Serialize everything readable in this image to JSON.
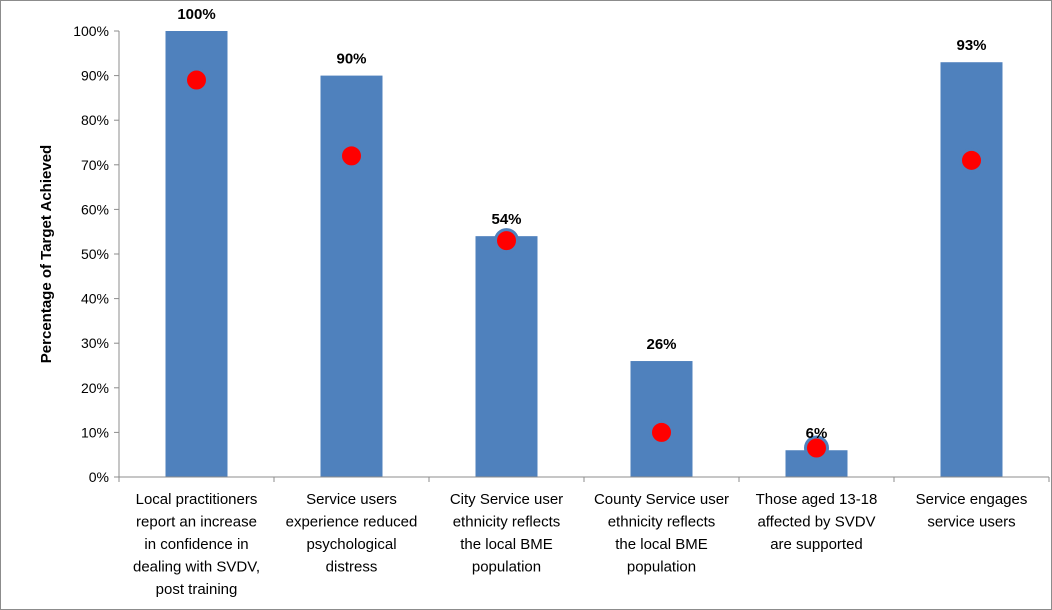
{
  "chart_data": {
    "type": "bar",
    "title": "",
    "xlabel": "",
    "ylabel": "Percentage of Target Achieved",
    "ylim": [
      0,
      100
    ],
    "yticks": [
      "0%",
      "10%",
      "20%",
      "30%",
      "40%",
      "50%",
      "60%",
      "70%",
      "80%",
      "90%",
      "100%"
    ],
    "grid": false,
    "legend": "none",
    "categories": [
      [
        "Local practitioners",
        "report an increase",
        "in confidence in",
        "dealing with SVDV,",
        "post training"
      ],
      [
        "Service users",
        "experience reduced",
        "psychological",
        "distress"
      ],
      [
        "City Service user",
        "ethnicity reflects",
        "the local BME",
        "population"
      ],
      [
        "County Service user",
        "ethnicity reflects",
        "the local BME",
        "population"
      ],
      [
        "Those aged 13-18",
        "affected by SVDV",
        "are supported"
      ],
      [
        "Service engages",
        "service users"
      ]
    ],
    "series": [
      {
        "type": "bar",
        "color": "#4f81bd",
        "values": [
          100,
          90,
          54,
          26,
          6,
          93
        ],
        "labels": [
          "100%",
          "90%",
          "54%",
          "26%",
          "6%",
          "93%"
        ]
      },
      {
        "type": "marker",
        "color": "#ff0000",
        "values": [
          89,
          72,
          53,
          10,
          6.5,
          71
        ]
      }
    ]
  }
}
